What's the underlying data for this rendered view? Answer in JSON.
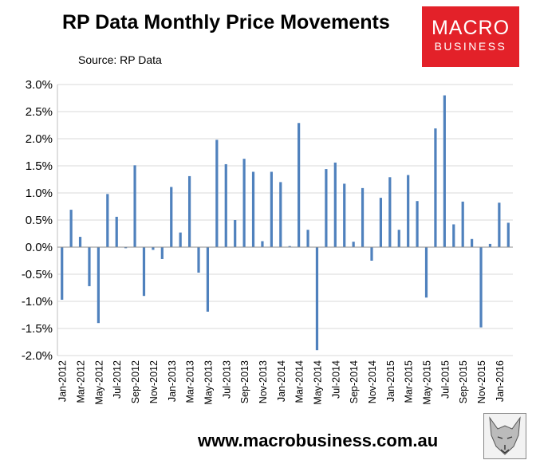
{
  "header": {
    "title": "RP Data Monthly Price Movements",
    "source": "Source: RP Data"
  },
  "logo": {
    "line1": "MACRO",
    "line2": "BUSINESS"
  },
  "footer": {
    "url": "www.macrobusiness.com.au"
  },
  "colors": {
    "bar": "#4f81bd",
    "logo_bg": "#e32129",
    "grid": "#d9d9d9"
  },
  "chart_data": {
    "type": "bar",
    "title": "RP Data Monthly Price Movements",
    "ylim": [
      -2.0,
      3.0
    ],
    "yticks": [
      "-2.0%",
      "-1.5%",
      "-1.0%",
      "-0.5%",
      "0.0%",
      "0.5%",
      "1.0%",
      "1.5%",
      "2.0%",
      "2.5%",
      "3.0%"
    ],
    "ytick_values": [
      -2.0,
      -1.5,
      -1.0,
      -0.5,
      0.0,
      0.5,
      1.0,
      1.5,
      2.0,
      2.5,
      3.0
    ],
    "grid": true,
    "categories": [
      "Jan-2012",
      "Feb-2012",
      "Mar-2012",
      "Apr-2012",
      "May-2012",
      "Jun-2012",
      "Jul-2012",
      "Aug-2012",
      "Sep-2012",
      "Oct-2012",
      "Nov-2012",
      "Dec-2012",
      "Jan-2013",
      "Feb-2013",
      "Mar-2013",
      "Apr-2013",
      "May-2013",
      "Jun-2013",
      "Jul-2013",
      "Aug-2013",
      "Sep-2013",
      "Oct-2013",
      "Nov-2013",
      "Dec-2013",
      "Jan-2014",
      "Feb-2014",
      "Mar-2014",
      "Apr-2014",
      "May-2014",
      "Jun-2014",
      "Jul-2014",
      "Aug-2014",
      "Sep-2014",
      "Oct-2014",
      "Nov-2014",
      "Dec-2014",
      "Jan-2015",
      "Feb-2015",
      "Mar-2015",
      "Apr-2015",
      "May-2015",
      "Jun-2015",
      "Jul-2015",
      "Aug-2015",
      "Sep-2015",
      "Oct-2015",
      "Nov-2015",
      "Dec-2015",
      "Jan-2016",
      "Feb-2016"
    ],
    "xtick_labels": [
      "Jan-2012",
      "Mar-2012",
      "May-2012",
      "Jul-2012",
      "Sep-2012",
      "Nov-2012",
      "Jan-2013",
      "Mar-2013",
      "May-2013",
      "Jul-2013",
      "Sep-2013",
      "Nov-2013",
      "Jan-2014",
      "Mar-2014",
      "May-2014",
      "Jul-2014",
      "Sep-2014",
      "Nov-2014",
      "Jan-2015",
      "Mar-2015",
      "May-2015",
      "Jul-2015",
      "Sep-2015",
      "Nov-2015",
      "Jan-2016"
    ],
    "values": [
      -0.97,
      0.69,
      0.19,
      -0.72,
      -1.4,
      0.98,
      0.56,
      -0.02,
      1.51,
      -0.9,
      -0.05,
      -0.22,
      1.11,
      0.27,
      1.31,
      -0.47,
      -1.19,
      1.98,
      1.53,
      0.5,
      1.63,
      1.39,
      0.11,
      1.39,
      1.2,
      0.02,
      2.29,
      0.32,
      -1.9,
      1.44,
      1.56,
      1.17,
      0.1,
      1.09,
      -0.25,
      0.91,
      1.29,
      0.32,
      1.33,
      0.85,
      -0.93,
      2.19,
      2.8,
      0.42,
      0.84,
      0.15,
      -1.48,
      0.06,
      0.82,
      0.45
    ]
  }
}
